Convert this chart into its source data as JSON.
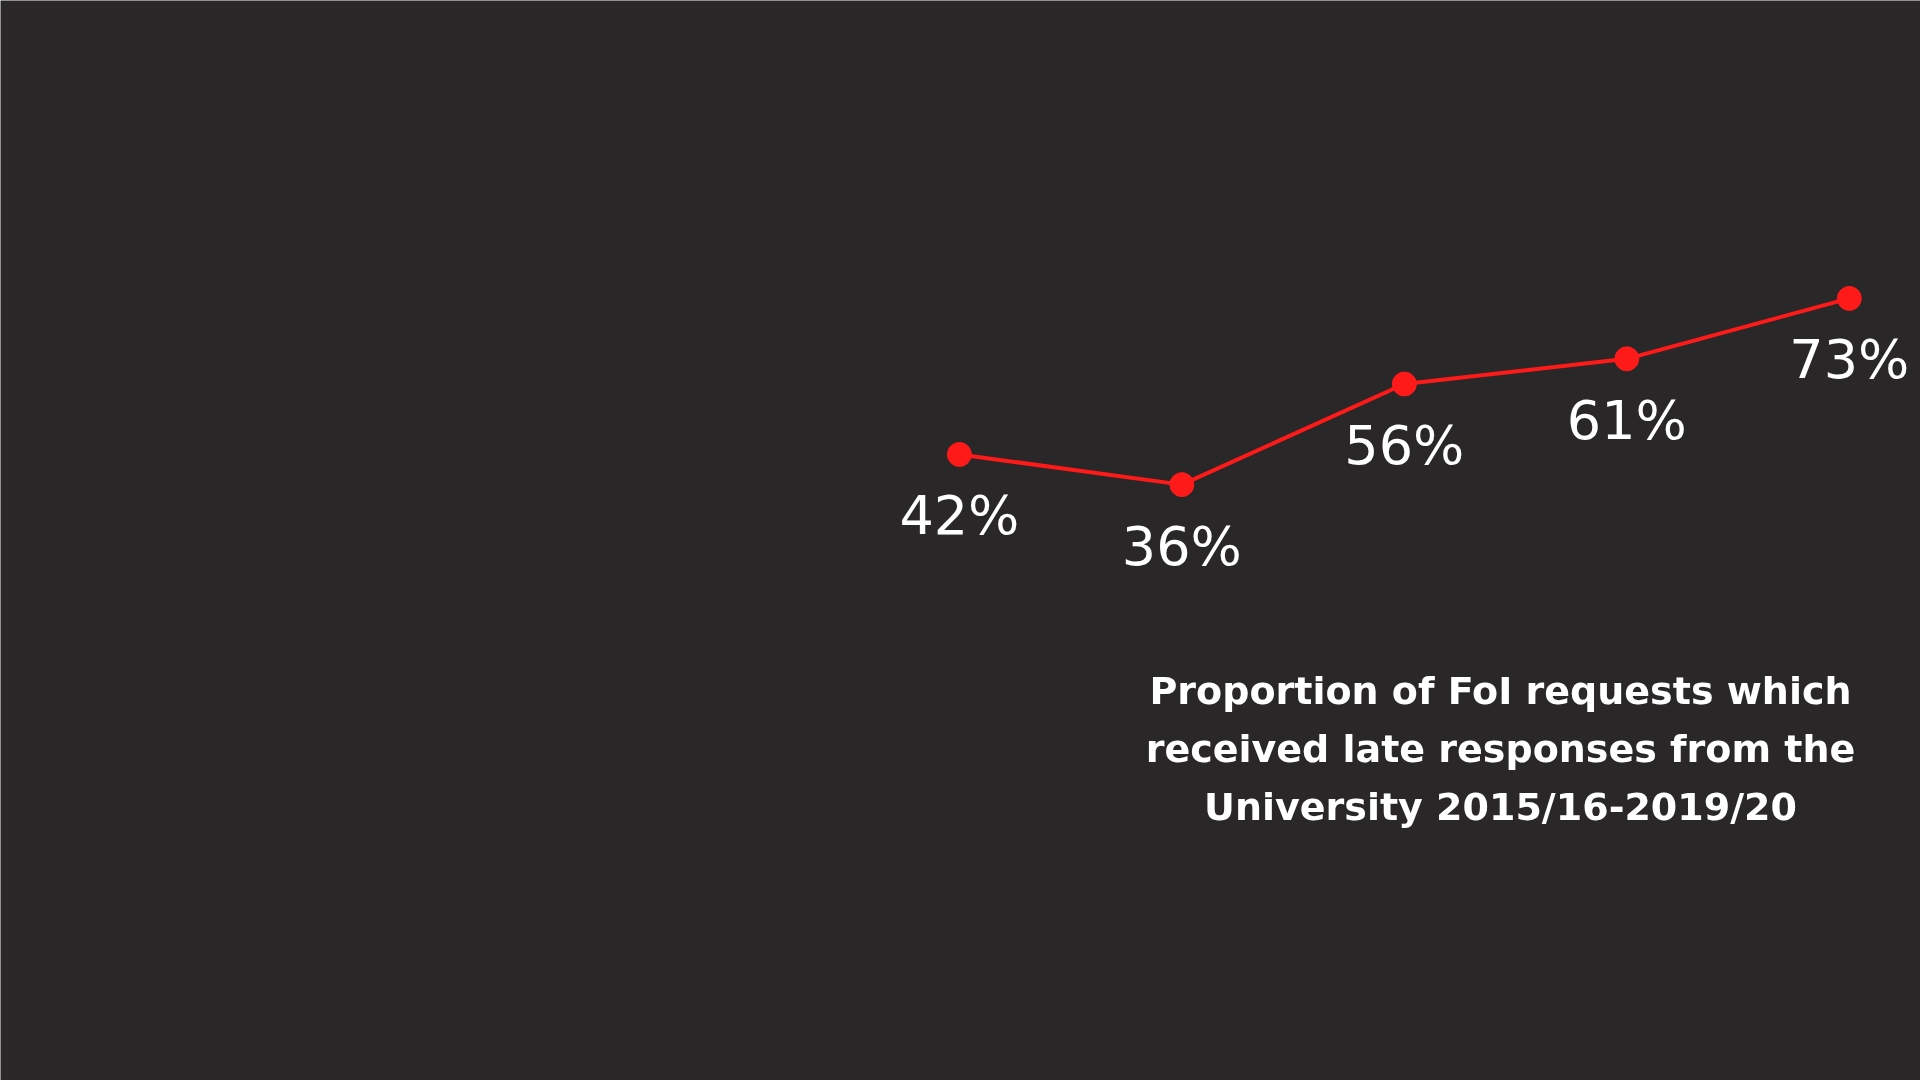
{
  "chart_data": {
    "type": "line",
    "title": "Proportion of FoI requests which received late responses from the University 2015/16-2019/20",
    "categories": [
      null,
      null,
      null,
      null,
      null
    ],
    "series": [
      {
        "color": "#ff1a1a",
        "values": [
          42,
          36,
          56,
          61,
          73
        ],
        "value_labels": [
          "42%",
          "36%",
          "56%",
          "61%",
          "73%"
        ]
      }
    ],
    "marker": "circle",
    "line_style": "solid",
    "grid": false,
    "tick_labels": false
  }
}
